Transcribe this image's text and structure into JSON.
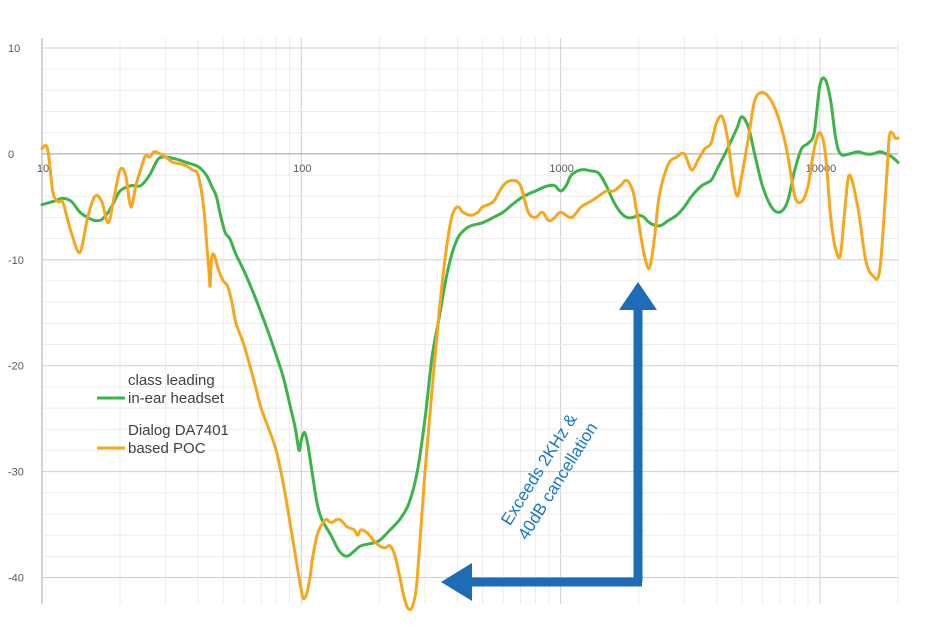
{
  "chart_data": {
    "type": "line",
    "x_scale": "log",
    "xlim": [
      10,
      20000
    ],
    "ylim": [
      -42.5,
      10
    ],
    "x_ticks": [
      "10",
      "100",
      "1000",
      "10000"
    ],
    "y_ticks": [
      "10",
      "0",
      "-10",
      "-20",
      "-30",
      "-40"
    ],
    "grid": true,
    "legend_position": "left-middle",
    "colors": {
      "series_0": "#3cb44b",
      "series_1": "#f5a81f",
      "arrow": "#1e6cb5",
      "annotation_text": "#1a78c2"
    },
    "series": [
      {
        "name_lines": [
          "class leading",
          "in-ear headset"
        ],
        "x": [
          10,
          11,
          12,
          13,
          14,
          15,
          16,
          17,
          18,
          19,
          20,
          22,
          24,
          26,
          28,
          30,
          33,
          36,
          40,
          43,
          45,
          47,
          49,
          51,
          53,
          56,
          60,
          65,
          70,
          75,
          80,
          85,
          90,
          95,
          98,
          100,
          103,
          106,
          110,
          115,
          120,
          130,
          140,
          150,
          160,
          170,
          185,
          200,
          220,
          240,
          260,
          280,
          300,
          320,
          340,
          360,
          380,
          400,
          420,
          450,
          500,
          550,
          600,
          650,
          700,
          750,
          800,
          850,
          900,
          950,
          1000,
          1050,
          1100,
          1200,
          1300,
          1400,
          1500,
          1600,
          1700,
          1800,
          1900,
          2000,
          2100,
          2200,
          2400,
          2600,
          2800,
          3000,
          3200,
          3500,
          3800,
          4000,
          4200,
          4400,
          4600,
          4800,
          5000,
          5300,
          5600,
          6000,
          6500,
          7000,
          7500,
          8000,
          8500,
          9000,
          9500,
          10000,
          10500,
          11000,
          11500,
          12000,
          13000,
          14000,
          15000,
          16000,
          17000,
          18000,
          19000,
          20000
        ],
        "y": [
          -4.8,
          -4.5,
          -4.2,
          -4.5,
          -5.5,
          -6.0,
          -6.3,
          -6.2,
          -5.5,
          -4.5,
          -3.5,
          -3.0,
          -3.0,
          -2.0,
          -0.5,
          -0.3,
          -0.5,
          -0.8,
          -1.2,
          -2.0,
          -3.0,
          -4.0,
          -6.0,
          -7.5,
          -8.0,
          -9.5,
          -11.0,
          -13.0,
          -15.0,
          -17.0,
          -19.0,
          -21.0,
          -23.5,
          -26.0,
          -28.0,
          -27.0,
          -26.3,
          -27.5,
          -30.0,
          -33.0,
          -34.5,
          -36.0,
          -37.5,
          -38.0,
          -37.5,
          -37.0,
          -36.8,
          -36.5,
          -35.5,
          -34.5,
          -33.0,
          -30.0,
          -25.0,
          -19.0,
          -15.5,
          -12.0,
          -9.5,
          -8.0,
          -7.3,
          -6.8,
          -6.5,
          -6.0,
          -5.5,
          -4.8,
          -4.2,
          -3.8,
          -3.5,
          -3.2,
          -3.0,
          -3.0,
          -3.5,
          -3.0,
          -2.0,
          -1.5,
          -1.6,
          -1.8,
          -3.0,
          -4.5,
          -5.5,
          -6.0,
          -6.0,
          -5.8,
          -6.0,
          -6.5,
          -6.8,
          -6.3,
          -5.8,
          -5.0,
          -4.0,
          -3.0,
          -2.5,
          -1.5,
          -0.5,
          0.5,
          1.5,
          2.5,
          3.5,
          2.5,
          0.0,
          -3.0,
          -5.0,
          -5.5,
          -4.5,
          -1.5,
          0.5,
          1.0,
          2.0,
          6.5,
          7.0,
          5.0,
          1.5,
          0.0,
          0.0,
          0.2,
          0.0,
          0.0,
          0.2,
          0.0,
          -0.3,
          -0.8
        ]
      },
      {
        "name_lines": [
          "Dialog DA7401",
          "based POC"
        ],
        "x": [
          10,
          10.5,
          11,
          11.5,
          12,
          12.5,
          13,
          14,
          15,
          16,
          17,
          18,
          19,
          20,
          21,
          22,
          23,
          24,
          25,
          26,
          27,
          28,
          30,
          32,
          35,
          38,
          40,
          42,
          43,
          44,
          44.5,
          45,
          46,
          48,
          50,
          52,
          54,
          56,
          60,
          65,
          70,
          75,
          80,
          85,
          90,
          95,
          100,
          102,
          105,
          108,
          110,
          115,
          120,
          125,
          130,
          140,
          150,
          160,
          165,
          170,
          180,
          190,
          200,
          210,
          220,
          230,
          240,
          250,
          260,
          270,
          280,
          300,
          320,
          340,
          360,
          380,
          400,
          420,
          450,
          480,
          500,
          550,
          600,
          650,
          700,
          750,
          800,
          850,
          900,
          950,
          1000,
          1100,
          1200,
          1300,
          1400,
          1500,
          1600,
          1700,
          1800,
          1900,
          1950,
          2000,
          2100,
          2200,
          2300,
          2400,
          2600,
          2800,
          3000,
          3200,
          3400,
          3600,
          3800,
          4000,
          4200,
          4400,
          4600,
          4800,
          5000,
          5300,
          5600,
          6000,
          6500,
          7000,
          7500,
          8000,
          8500,
          9000,
          9500,
          10000,
          10500,
          11000,
          11500,
          12000,
          12500,
          13000,
          14000,
          15000,
          16000,
          17000,
          18000,
          18500,
          19000,
          19500,
          20000
        ],
        "y": [
          0.5,
          0.5,
          -3.5,
          -4.5,
          -4.5,
          -6.0,
          -7.5,
          -9.3,
          -6.0,
          -4.0,
          -4.5,
          -6.5,
          -4.0,
          -1.5,
          -2.0,
          -5.0,
          -3.0,
          -1.5,
          -0.2,
          -0.3,
          0.2,
          0.1,
          -0.3,
          -0.8,
          -1.0,
          -1.5,
          -2.0,
          -5.0,
          -8.0,
          -11.0,
          -12.5,
          -10.0,
          -9.5,
          -11.0,
          -12.0,
          -12.5,
          -14.0,
          -16.0,
          -18.0,
          -21.0,
          -24.0,
          -26.0,
          -28.0,
          -31.0,
          -34.5,
          -38.0,
          -41.2,
          -42.0,
          -41.5,
          -40.0,
          -38.5,
          -36.0,
          -35.0,
          -34.5,
          -34.8,
          -34.5,
          -35.2,
          -35.5,
          -36.0,
          -35.5,
          -35.8,
          -36.5,
          -37.0,
          -37.2,
          -37.0,
          -38.0,
          -40.0,
          -42.0,
          -43.0,
          -42.5,
          -40.0,
          -30.0,
          -22.0,
          -15.0,
          -9.5,
          -6.0,
          -5.0,
          -5.5,
          -5.8,
          -5.5,
          -5.0,
          -4.5,
          -3.0,
          -2.5,
          -3.0,
          -5.5,
          -6.0,
          -5.5,
          -6.3,
          -6.0,
          -5.5,
          -6.0,
          -5.0,
          -4.5,
          -4.0,
          -3.5,
          -3.5,
          -3.0,
          -2.5,
          -3.5,
          -5.0,
          -6.5,
          -9.5,
          -10.8,
          -8.0,
          -4.0,
          -1.0,
          -0.3,
          0.0,
          -1.5,
          -0.5,
          0.5,
          1.0,
          3.0,
          3.5,
          1.5,
          -2.0,
          -4.0,
          -2.0,
          1.5,
          5.0,
          5.8,
          5.0,
          3.0,
          0.0,
          -4.0,
          -4.5,
          -3.0,
          0.5,
          2.0,
          0.0,
          -6.0,
          -9.0,
          -9.5,
          -5.0,
          -2.0,
          -5.0,
          -10.0,
          -11.5,
          -11.0,
          -3.0,
          1.5,
          2.0,
          1.5,
          1.5
        ]
      }
    ],
    "annotation": {
      "lines": [
        "Exceeds 2KHz &",
        "40dB cancellation"
      ]
    }
  }
}
